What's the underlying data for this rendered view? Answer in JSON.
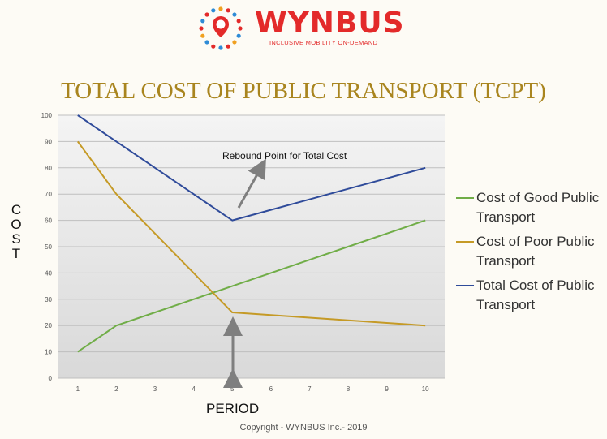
{
  "header": {
    "brand": "WYNBUS",
    "tagline": "INCLUSIVE MOBILITY ON-DEMAND",
    "title": "TOTAL COST OF PUBLIC TRANSPORT (TCPT)"
  },
  "footer": {
    "copyright": "Copyright - WYNBUS Inc.- 2019"
  },
  "colors": {
    "brand_red": "#e32a2a",
    "title_gold": "#a9851f"
  },
  "chart_data": {
    "type": "line",
    "xlabel": "PERIOD",
    "ylabel": "COST",
    "x": [
      1,
      2,
      3,
      4,
      5,
      6,
      7,
      8,
      9,
      10
    ],
    "xlim": [
      0.5,
      10.5
    ],
    "ylim": [
      0,
      100
    ],
    "yticks": [
      0,
      10,
      20,
      30,
      40,
      50,
      60,
      70,
      80,
      90,
      100
    ],
    "grid": true,
    "legend_position": "right",
    "series": [
      {
        "name": "Cost of Good Public Transport",
        "color": "#70ad47",
        "values": [
          10,
          20,
          25,
          30,
          35,
          40,
          45,
          50,
          55,
          60
        ]
      },
      {
        "name": "Cost of Poor Public Transport",
        "color": "#c59a26",
        "values": [
          90,
          70,
          55,
          40,
          25,
          24,
          23,
          22,
          21,
          20
        ]
      },
      {
        "name": "Total Cost of Public Transport",
        "color": "#2f4b9a",
        "values": [
          100,
          90,
          80,
          70,
          60,
          64,
          68,
          72,
          76,
          80
        ]
      }
    ],
    "annotations": [
      {
        "text": "Rebound Point for Total Cost"
      }
    ]
  }
}
